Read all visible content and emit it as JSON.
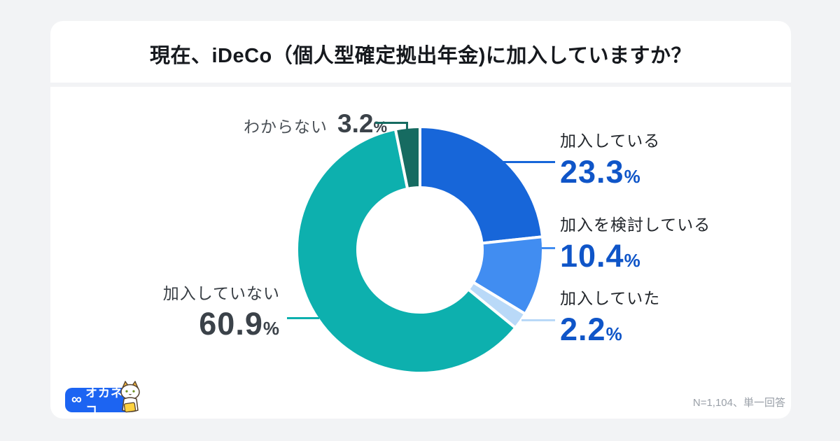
{
  "title": "現在、iDeCo（個人型確定拠出年金)に加入していますか？",
  "chart_data": {
    "type": "pie",
    "subtype": "donut",
    "title": "現在、iDeCo（個人型確定拠出年金)に加入していますか？",
    "start_angle_deg": 0,
    "direction": "clockwise",
    "categories": [
      "加入している",
      "加入を検討している",
      "加入していた",
      "加入していない",
      "わからない"
    ],
    "values": [
      23.3,
      10.4,
      2.2,
      60.9,
      3.2
    ],
    "colors": [
      "#1766d9",
      "#418df1",
      "#b9d9f8",
      "#0db0ae",
      "#166b61"
    ],
    "legend_position": "callouts",
    "sample_note": "N=1,104、単一回答"
  },
  "callouts": {
    "enrolled": {
      "label": "加入している",
      "value": "23.3",
      "unit": "%"
    },
    "considering": {
      "label": "加入を検討している",
      "value": "10.4",
      "unit": "%"
    },
    "was_enrolled": {
      "label": "加入していた",
      "value": "2.2",
      "unit": "%"
    },
    "not_enrolled": {
      "label": "加入していない",
      "value": "60.9",
      "unit": "%"
    },
    "unknown": {
      "label": "わからない",
      "value": "3.2",
      "unit": "%"
    }
  },
  "colors": {
    "number_blue": "#0f55c8",
    "number_gray": "#3b4249",
    "leader_enrolled": "#1766d9",
    "leader_considering": "#418df1",
    "leader_was_enrolled": "#b9d9f8",
    "leader_not_enrolled": "#0db0ae",
    "leader_unknown": "#166b61",
    "logo_blue": "#1c64f2"
  },
  "footer": {
    "logo_icon": "∞",
    "logo_text": "オカネコ",
    "note": "N=1,104、単一回答"
  }
}
